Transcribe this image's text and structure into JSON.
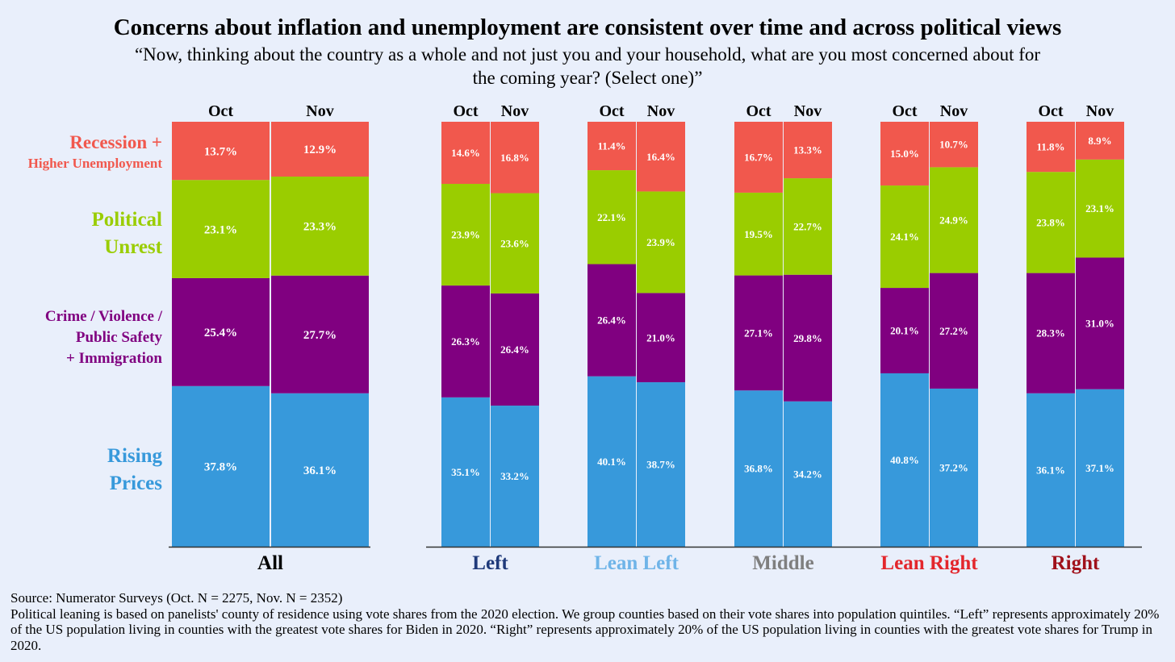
{
  "title": "Concerns about inflation and unemployment are consistent over time and across political views",
  "subtitle": "“Now, thinking about the country as a whole and not just you and your household, what are you most concerned about for the coming year? (Select one)”",
  "legend_labels": [
    {
      "key": "recession",
      "lines": [
        "Recession +",
        "Higher Unemployment"
      ],
      "color": "#f1584d"
    },
    {
      "key": "unrest",
      "lines": [
        "Political",
        "Unrest"
      ],
      "color": "#9acd00"
    },
    {
      "key": "crime",
      "lines": [
        "Crime / Violence /",
        "Public Safety",
        "+ Immigration"
      ],
      "color": "#800080"
    },
    {
      "key": "prices",
      "lines": [
        "Rising",
        "Prices"
      ],
      "color": "#3799db"
    }
  ],
  "chart_data": {
    "type": "bar",
    "stacked": true,
    "normalized": true,
    "title": "Concerns about inflation and unemployment are consistent over time and across political views",
    "bar_labels": [
      "Oct",
      "Nov"
    ],
    "series_order_bottom_to_top": [
      "Rising Prices",
      "Crime / Violence / Public Safety + Immigration",
      "Political Unrest",
      "Recession + Higher Unemployment"
    ],
    "groups": [
      {
        "name": "All",
        "color": "#000000",
        "bars": [
          {
            "label": "Oct",
            "values": [
              37.8,
              25.4,
              23.1,
              13.7
            ]
          },
          {
            "label": "Nov",
            "values": [
              36.1,
              27.7,
              23.3,
              12.9
            ]
          }
        ]
      },
      {
        "name": "Left",
        "color": "#1f3a7a",
        "bars": [
          {
            "label": "Oct",
            "values": [
              35.1,
              26.3,
              23.9,
              14.6
            ]
          },
          {
            "label": "Nov",
            "values": [
              33.2,
              26.4,
              23.6,
              16.8
            ]
          }
        ]
      },
      {
        "name": "Lean Left",
        "color": "#6fb4e8",
        "bars": [
          {
            "label": "Oct",
            "values": [
              40.1,
              26.4,
              22.1,
              11.4
            ]
          },
          {
            "label": "Nov",
            "values": [
              38.7,
              21.0,
              23.9,
              16.4
            ]
          }
        ]
      },
      {
        "name": "Middle",
        "color": "#7f7f7f",
        "bars": [
          {
            "label": "Oct",
            "values": [
              36.8,
              27.1,
              19.5,
              16.7
            ]
          },
          {
            "label": "Nov",
            "values": [
              34.2,
              29.8,
              22.7,
              13.3
            ]
          }
        ]
      },
      {
        "name": "Lean Right",
        "color": "#e3262c",
        "bars": [
          {
            "label": "Oct",
            "values": [
              40.8,
              20.1,
              24.1,
              15.0
            ]
          },
          {
            "label": "Nov",
            "values": [
              37.2,
              27.2,
              24.9,
              10.7
            ]
          }
        ]
      },
      {
        "name": "Right",
        "color": "#a0111b",
        "bars": [
          {
            "label": "Oct",
            "values": [
              36.1,
              28.3,
              23.8,
              11.8
            ]
          },
          {
            "label": "Nov",
            "values": [
              37.1,
              31.0,
              23.1,
              8.9
            ]
          }
        ]
      }
    ],
    "series_colors": [
      "#3799db",
      "#800080",
      "#9acd00",
      "#f1584d"
    ]
  },
  "footer": {
    "source": "Source: Numerator Surveys  (Oct. N = 2275, Nov. N = 2352)",
    "note": "Political leaning is based on panelists' county of residence using vote shares from the 2020 election. We group counties based on their vote shares into population quintiles. “Left” represents approximately 20% of the US population living in counties with the greatest vote shares for Biden in 2020. “Right” represents approximately 20% of the US population living in counties with the greatest vote shares for Trump in 2020."
  }
}
